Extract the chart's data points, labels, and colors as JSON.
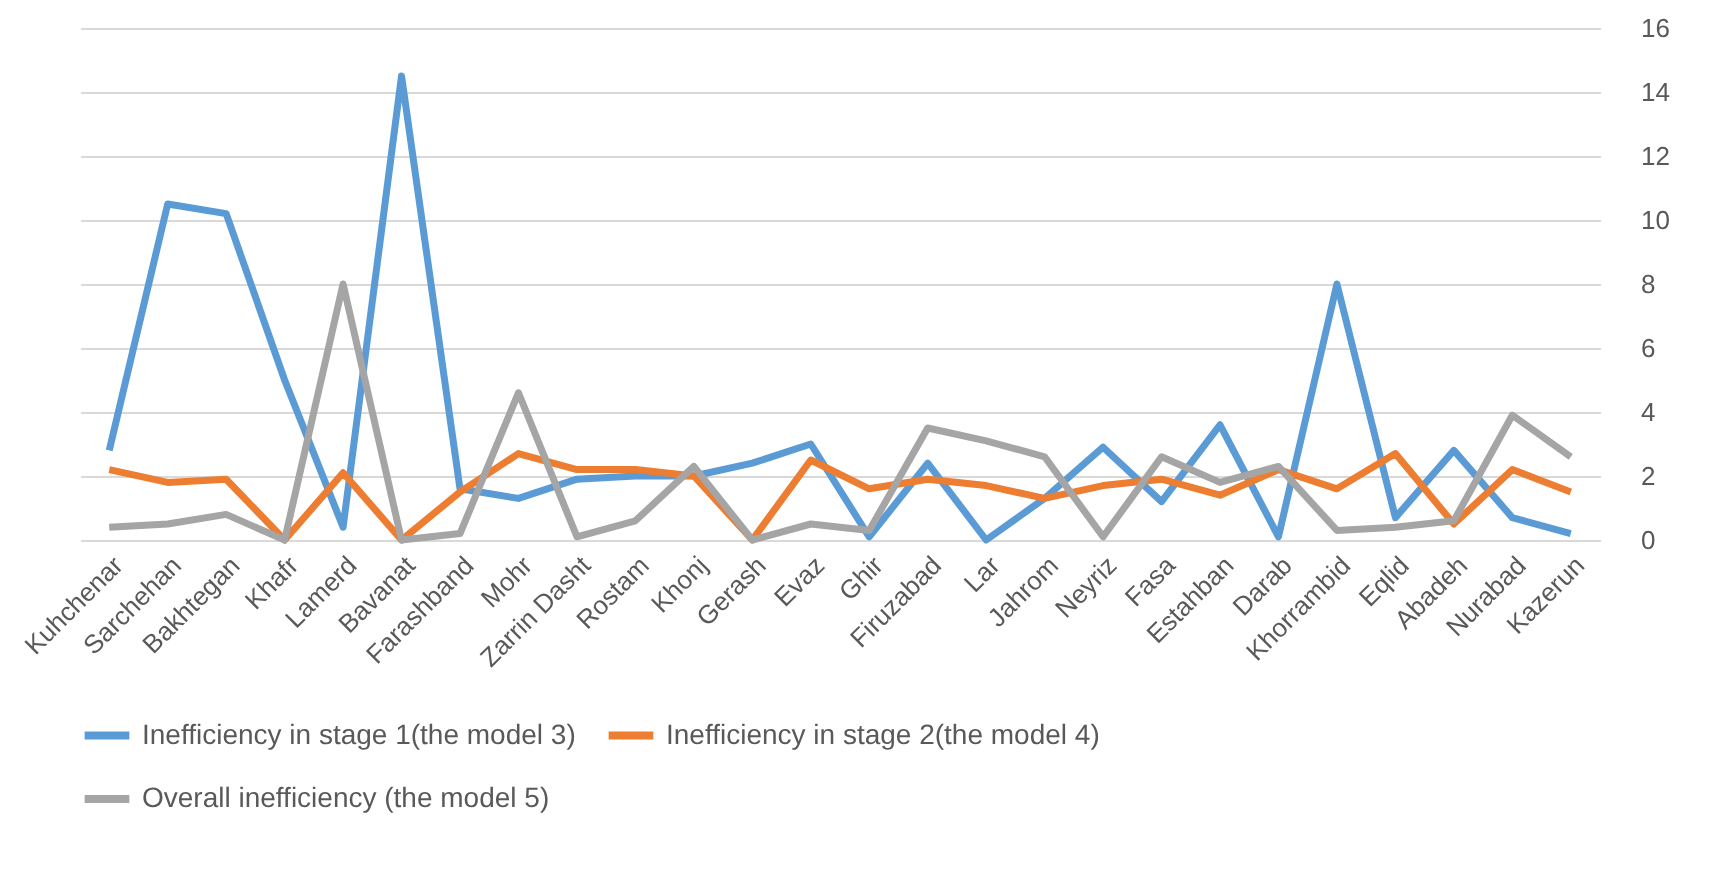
{
  "chart_data": {
    "type": "line",
    "categories": [
      "Kuhchenar",
      "Sarchehan",
      "Bakhtegan",
      "Khafr",
      "Lamerd",
      "Bavanat",
      "Farashband",
      "Mohr",
      "Zarrin Dasht",
      "Rostam",
      "Khonj",
      "Gerash",
      "Evaz",
      "Ghir",
      "Firuzabad",
      "Lar",
      "Jahrom",
      "Neyriz",
      "Fasa",
      "Estahban",
      "Darab",
      "Khorrambid",
      "Eqlid",
      "Abadeh",
      "Nurabad",
      "Kazerun"
    ],
    "series": [
      {
        "name": "Inefficiency in stage 1(the model 3)",
        "color": "#5b9bd5",
        "values": [
          2.8,
          10.5,
          10.2,
          5.0,
          0.4,
          14.5,
          1.6,
          1.3,
          1.9,
          2.0,
          2.0,
          2.4,
          3.0,
          0.1,
          2.4,
          0.0,
          1.3,
          2.9,
          1.2,
          3.6,
          0.1,
          8.0,
          0.7,
          2.8,
          0.7,
          0.2
        ]
      },
      {
        "name": "Inefficiency in stage 2(the model 4)",
        "color": "#ed7d31",
        "values": [
          2.2,
          1.8,
          1.9,
          0.0,
          2.1,
          0.0,
          1.5,
          2.7,
          2.2,
          2.2,
          2.0,
          0.0,
          2.5,
          1.6,
          1.9,
          1.7,
          1.3,
          1.7,
          1.9,
          1.4,
          2.2,
          1.6,
          2.7,
          0.5,
          2.2,
          1.5
        ]
      },
      {
        "name": "Overall inefficiency (the model 5)",
        "color": "#a5a5a5",
        "values": [
          0.4,
          0.5,
          0.8,
          0.0,
          8.0,
          0.0,
          0.2,
          4.6,
          0.1,
          0.6,
          2.3,
          0.0,
          0.5,
          0.3,
          3.5,
          3.1,
          2.6,
          0.1,
          2.6,
          1.8,
          2.3,
          0.3,
          0.4,
          0.6,
          3.9,
          2.6
        ]
      }
    ],
    "ylim": [
      0,
      16
    ],
    "yticks": [
      0,
      2,
      4,
      6,
      8,
      10,
      12,
      14,
      16
    ],
    "grid": "y",
    "legend": "bottom",
    "marker": "none",
    "line_style": "solid"
  }
}
